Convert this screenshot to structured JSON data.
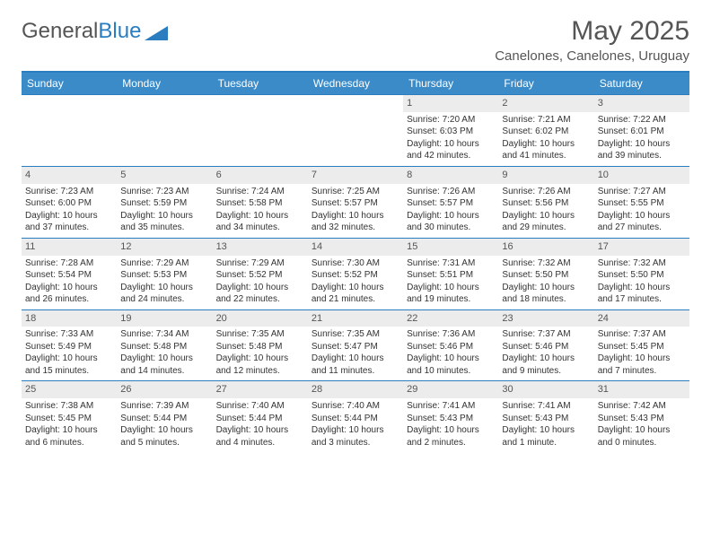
{
  "brand": {
    "part1": "General",
    "part2": "Blue"
  },
  "title": "May 2025",
  "location": "Canelones, Canelones, Uruguay",
  "colors": {
    "accent": "#3b8bc9",
    "rule": "#2a7ebf",
    "daynum_bg": "#ececec",
    "text": "#333333",
    "muted": "#555555",
    "background": "#ffffff"
  },
  "typography": {
    "title_fontsize": 30,
    "location_fontsize": 15,
    "dayhead_fontsize": 12,
    "cell_fontsize": 10
  },
  "day_headers": [
    "Sunday",
    "Monday",
    "Tuesday",
    "Wednesday",
    "Thursday",
    "Friday",
    "Saturday"
  ],
  "weeks": [
    [
      {
        "n": "",
        "sunrise": "",
        "sunset": "",
        "daylight": ""
      },
      {
        "n": "",
        "sunrise": "",
        "sunset": "",
        "daylight": ""
      },
      {
        "n": "",
        "sunrise": "",
        "sunset": "",
        "daylight": ""
      },
      {
        "n": "",
        "sunrise": "",
        "sunset": "",
        "daylight": ""
      },
      {
        "n": "1",
        "sunrise": "Sunrise: 7:20 AM",
        "sunset": "Sunset: 6:03 PM",
        "daylight": "Daylight: 10 hours and 42 minutes."
      },
      {
        "n": "2",
        "sunrise": "Sunrise: 7:21 AM",
        "sunset": "Sunset: 6:02 PM",
        "daylight": "Daylight: 10 hours and 41 minutes."
      },
      {
        "n": "3",
        "sunrise": "Sunrise: 7:22 AM",
        "sunset": "Sunset: 6:01 PM",
        "daylight": "Daylight: 10 hours and 39 minutes."
      }
    ],
    [
      {
        "n": "4",
        "sunrise": "Sunrise: 7:23 AM",
        "sunset": "Sunset: 6:00 PM",
        "daylight": "Daylight: 10 hours and 37 minutes."
      },
      {
        "n": "5",
        "sunrise": "Sunrise: 7:23 AM",
        "sunset": "Sunset: 5:59 PM",
        "daylight": "Daylight: 10 hours and 35 minutes."
      },
      {
        "n": "6",
        "sunrise": "Sunrise: 7:24 AM",
        "sunset": "Sunset: 5:58 PM",
        "daylight": "Daylight: 10 hours and 34 minutes."
      },
      {
        "n": "7",
        "sunrise": "Sunrise: 7:25 AM",
        "sunset": "Sunset: 5:57 PM",
        "daylight": "Daylight: 10 hours and 32 minutes."
      },
      {
        "n": "8",
        "sunrise": "Sunrise: 7:26 AM",
        "sunset": "Sunset: 5:57 PM",
        "daylight": "Daylight: 10 hours and 30 minutes."
      },
      {
        "n": "9",
        "sunrise": "Sunrise: 7:26 AM",
        "sunset": "Sunset: 5:56 PM",
        "daylight": "Daylight: 10 hours and 29 minutes."
      },
      {
        "n": "10",
        "sunrise": "Sunrise: 7:27 AM",
        "sunset": "Sunset: 5:55 PM",
        "daylight": "Daylight: 10 hours and 27 minutes."
      }
    ],
    [
      {
        "n": "11",
        "sunrise": "Sunrise: 7:28 AM",
        "sunset": "Sunset: 5:54 PM",
        "daylight": "Daylight: 10 hours and 26 minutes."
      },
      {
        "n": "12",
        "sunrise": "Sunrise: 7:29 AM",
        "sunset": "Sunset: 5:53 PM",
        "daylight": "Daylight: 10 hours and 24 minutes."
      },
      {
        "n": "13",
        "sunrise": "Sunrise: 7:29 AM",
        "sunset": "Sunset: 5:52 PM",
        "daylight": "Daylight: 10 hours and 22 minutes."
      },
      {
        "n": "14",
        "sunrise": "Sunrise: 7:30 AM",
        "sunset": "Sunset: 5:52 PM",
        "daylight": "Daylight: 10 hours and 21 minutes."
      },
      {
        "n": "15",
        "sunrise": "Sunrise: 7:31 AM",
        "sunset": "Sunset: 5:51 PM",
        "daylight": "Daylight: 10 hours and 19 minutes."
      },
      {
        "n": "16",
        "sunrise": "Sunrise: 7:32 AM",
        "sunset": "Sunset: 5:50 PM",
        "daylight": "Daylight: 10 hours and 18 minutes."
      },
      {
        "n": "17",
        "sunrise": "Sunrise: 7:32 AM",
        "sunset": "Sunset: 5:50 PM",
        "daylight": "Daylight: 10 hours and 17 minutes."
      }
    ],
    [
      {
        "n": "18",
        "sunrise": "Sunrise: 7:33 AM",
        "sunset": "Sunset: 5:49 PM",
        "daylight": "Daylight: 10 hours and 15 minutes."
      },
      {
        "n": "19",
        "sunrise": "Sunrise: 7:34 AM",
        "sunset": "Sunset: 5:48 PM",
        "daylight": "Daylight: 10 hours and 14 minutes."
      },
      {
        "n": "20",
        "sunrise": "Sunrise: 7:35 AM",
        "sunset": "Sunset: 5:48 PM",
        "daylight": "Daylight: 10 hours and 12 minutes."
      },
      {
        "n": "21",
        "sunrise": "Sunrise: 7:35 AM",
        "sunset": "Sunset: 5:47 PM",
        "daylight": "Daylight: 10 hours and 11 minutes."
      },
      {
        "n": "22",
        "sunrise": "Sunrise: 7:36 AM",
        "sunset": "Sunset: 5:46 PM",
        "daylight": "Daylight: 10 hours and 10 minutes."
      },
      {
        "n": "23",
        "sunrise": "Sunrise: 7:37 AM",
        "sunset": "Sunset: 5:46 PM",
        "daylight": "Daylight: 10 hours and 9 minutes."
      },
      {
        "n": "24",
        "sunrise": "Sunrise: 7:37 AM",
        "sunset": "Sunset: 5:45 PM",
        "daylight": "Daylight: 10 hours and 7 minutes."
      }
    ],
    [
      {
        "n": "25",
        "sunrise": "Sunrise: 7:38 AM",
        "sunset": "Sunset: 5:45 PM",
        "daylight": "Daylight: 10 hours and 6 minutes."
      },
      {
        "n": "26",
        "sunrise": "Sunrise: 7:39 AM",
        "sunset": "Sunset: 5:44 PM",
        "daylight": "Daylight: 10 hours and 5 minutes."
      },
      {
        "n": "27",
        "sunrise": "Sunrise: 7:40 AM",
        "sunset": "Sunset: 5:44 PM",
        "daylight": "Daylight: 10 hours and 4 minutes."
      },
      {
        "n": "28",
        "sunrise": "Sunrise: 7:40 AM",
        "sunset": "Sunset: 5:44 PM",
        "daylight": "Daylight: 10 hours and 3 minutes."
      },
      {
        "n": "29",
        "sunrise": "Sunrise: 7:41 AM",
        "sunset": "Sunset: 5:43 PM",
        "daylight": "Daylight: 10 hours and 2 minutes."
      },
      {
        "n": "30",
        "sunrise": "Sunrise: 7:41 AM",
        "sunset": "Sunset: 5:43 PM",
        "daylight": "Daylight: 10 hours and 1 minute."
      },
      {
        "n": "31",
        "sunrise": "Sunrise: 7:42 AM",
        "sunset": "Sunset: 5:43 PM",
        "daylight": "Daylight: 10 hours and 0 minutes."
      }
    ]
  ]
}
